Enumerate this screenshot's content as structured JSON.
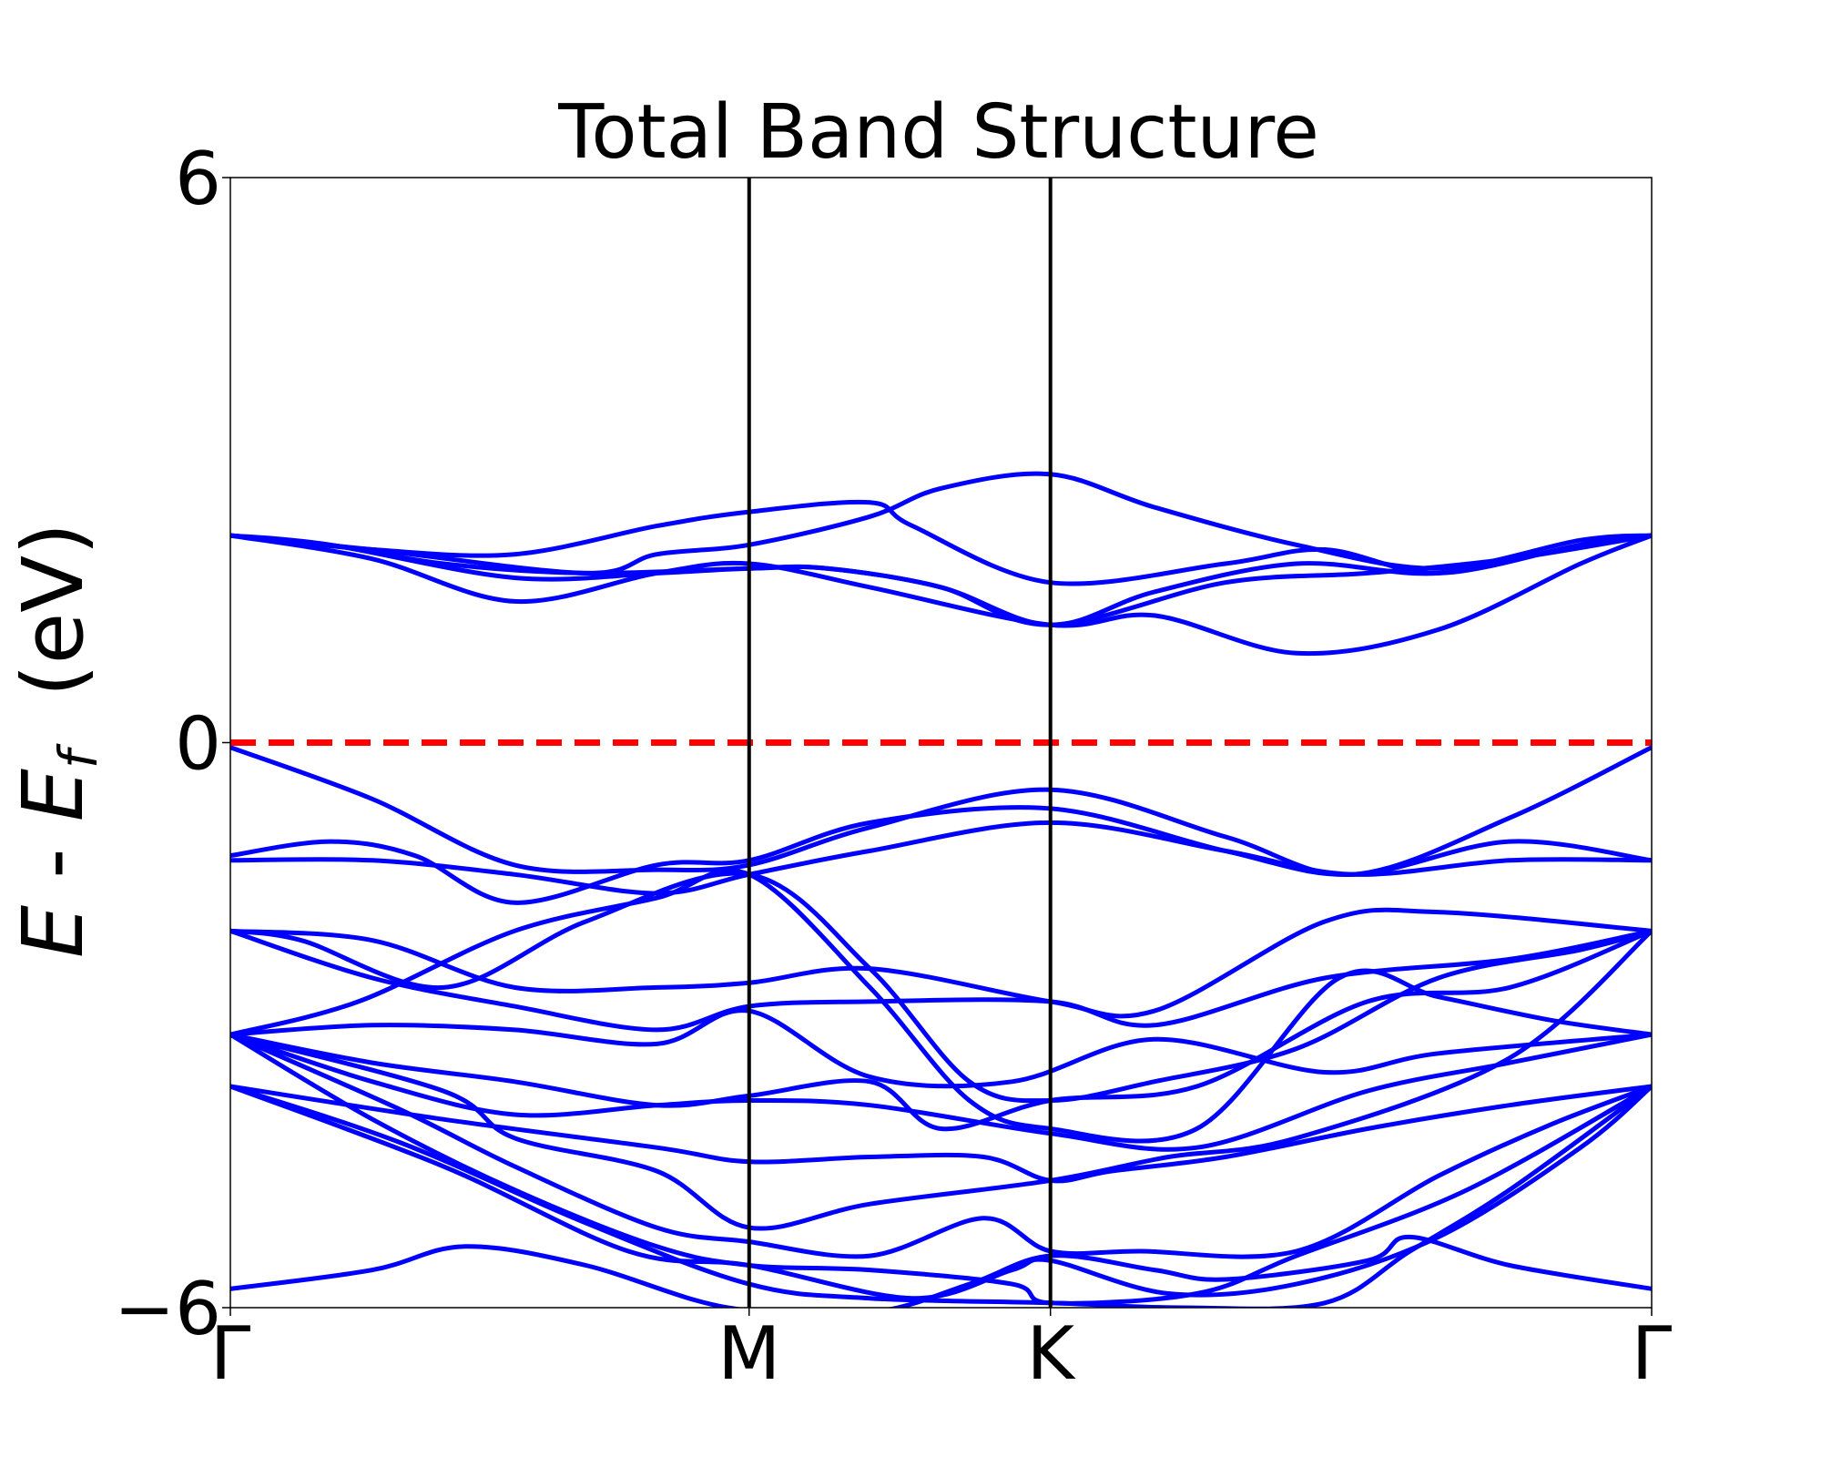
{
  "chart_data": {
    "type": "line",
    "title": "Total Band Structure",
    "ylabel": {
      "e": "E",
      "dash": " - ",
      "ef": "E",
      "sub": "f",
      "unit": "  (eV)"
    },
    "ylim": [
      -6,
      6
    ],
    "yticks": [
      "6",
      "0",
      "−6"
    ],
    "xlim": [
      0,
      1
    ],
    "kpoints": [
      {
        "label": "Γ",
        "x": 0.0
      },
      {
        "label": "M",
        "x": 0.365
      },
      {
        "label": "K",
        "x": 0.577
      },
      {
        "label": "Γ",
        "x": 1.0
      }
    ],
    "fermi_level": 0,
    "colors": {
      "bands": "#0000ff",
      "fermi": "#ff0000",
      "kpoint_lines": "#000000"
    },
    "series": [
      {
        "values": [
          [
            0,
            2.2
          ],
          [
            0.1,
            1.95
          ],
          [
            0.2,
            1.5
          ],
          [
            0.3,
            1.8
          ],
          [
            0.365,
            1.9
          ],
          [
            0.45,
            1.65
          ],
          [
            0.577,
            1.25
          ],
          [
            0.65,
            1.35
          ],
          [
            0.75,
            0.95
          ],
          [
            0.85,
            1.2
          ],
          [
            0.95,
            1.9
          ],
          [
            1,
            2.2
          ]
        ]
      },
      {
        "values": [
          [
            0,
            2.2
          ],
          [
            0.07,
            2.1
          ],
          [
            0.2,
            1.75
          ],
          [
            0.3,
            1.8
          ],
          [
            0.365,
            1.85
          ],
          [
            0.42,
            1.85
          ],
          [
            0.5,
            1.65
          ],
          [
            0.577,
            1.25
          ],
          [
            0.7,
            1.7
          ],
          [
            0.8,
            1.8
          ],
          [
            0.9,
            1.95
          ],
          [
            1,
            2.2
          ]
        ]
      },
      {
        "values": [
          [
            0,
            2.2
          ],
          [
            0.07,
            2.1
          ],
          [
            0.15,
            1.9
          ],
          [
            0.25,
            1.8
          ],
          [
            0.365,
            1.85
          ],
          [
            0.42,
            1.85
          ],
          [
            0.5,
            1.65
          ],
          [
            0.577,
            1.25
          ],
          [
            0.65,
            1.6
          ],
          [
            0.75,
            1.9
          ],
          [
            0.85,
            1.8
          ],
          [
            0.95,
            2.1
          ],
          [
            1,
            2.2
          ]
        ]
      },
      {
        "values": [
          [
            0,
            2.2
          ],
          [
            0.1,
            2.05
          ],
          [
            0.25,
            1.8
          ],
          [
            0.3,
            2.0
          ],
          [
            0.365,
            2.1
          ],
          [
            0.45,
            2.4
          ],
          [
            0.5,
            2.7
          ],
          [
            0.577,
            2.85
          ],
          [
            0.65,
            2.5
          ],
          [
            0.75,
            2.1
          ],
          [
            0.85,
            1.85
          ],
          [
            0.95,
            2.15
          ],
          [
            1,
            2.2
          ]
        ]
      },
      {
        "values": [
          [
            0,
            2.2
          ],
          [
            0.1,
            2.05
          ],
          [
            0.2,
            2.0
          ],
          [
            0.3,
            2.3
          ],
          [
            0.365,
            2.45
          ],
          [
            0.45,
            2.55
          ],
          [
            0.48,
            2.3
          ],
          [
            0.577,
            1.7
          ],
          [
            0.7,
            1.9
          ],
          [
            0.77,
            2.05
          ],
          [
            0.85,
            1.8
          ],
          [
            0.95,
            2.1
          ],
          [
            1,
            2.2
          ]
        ]
      },
      {
        "values": [
          [
            0,
            -0.05
          ],
          [
            0.1,
            -0.6
          ],
          [
            0.2,
            -1.3
          ],
          [
            0.3,
            -1.35
          ],
          [
            0.365,
            -1.3
          ],
          [
            0.45,
            -0.9
          ],
          [
            0.577,
            -0.5
          ],
          [
            0.7,
            -1.0
          ],
          [
            0.79,
            -1.4
          ],
          [
            0.9,
            -0.8
          ],
          [
            1,
            -0.05
          ]
        ]
      },
      {
        "values": [
          [
            0,
            -1.2
          ],
          [
            0.07,
            -1.05
          ],
          [
            0.13,
            -1.2
          ],
          [
            0.2,
            -1.7
          ],
          [
            0.3,
            -1.3
          ],
          [
            0.365,
            -1.25
          ],
          [
            0.45,
            -0.85
          ],
          [
            0.577,
            -0.7
          ],
          [
            0.7,
            -1.15
          ],
          [
            0.79,
            -1.4
          ],
          [
            0.9,
            -1.05
          ],
          [
            1,
            -1.25
          ]
        ]
      },
      {
        "values": [
          [
            0,
            -1.25
          ],
          [
            0.1,
            -1.25
          ],
          [
            0.2,
            -1.4
          ],
          [
            0.3,
            -1.6
          ],
          [
            0.365,
            -1.4
          ],
          [
            0.45,
            -1.15
          ],
          [
            0.577,
            -0.85
          ],
          [
            0.7,
            -1.15
          ],
          [
            0.79,
            -1.4
          ],
          [
            0.9,
            -1.25
          ],
          [
            1,
            -1.25
          ]
        ]
      },
      {
        "values": [
          [
            0,
            -2.0
          ],
          [
            0.1,
            -2.1
          ],
          [
            0.2,
            -2.6
          ],
          [
            0.3,
            -2.6
          ],
          [
            0.365,
            -2.55
          ],
          [
            0.45,
            -2.4
          ],
          [
            0.577,
            -2.75
          ],
          [
            0.65,
            -2.85
          ],
          [
            0.77,
            -1.9
          ],
          [
            0.85,
            -1.8
          ],
          [
            1,
            -2.0
          ]
        ]
      },
      {
        "values": [
          [
            0,
            -2.0
          ],
          [
            0.05,
            -2.1
          ],
          [
            0.15,
            -2.6
          ],
          [
            0.25,
            -1.9
          ],
          [
            0.365,
            -1.4
          ],
          [
            0.45,
            -2.4
          ],
          [
            0.52,
            -3.6
          ],
          [
            0.577,
            -3.8
          ],
          [
            0.65,
            -3.6
          ],
          [
            0.75,
            -3.25
          ],
          [
            0.85,
            -2.5
          ],
          [
            0.95,
            -2.2
          ],
          [
            1,
            -2.0
          ]
        ]
      },
      {
        "values": [
          [
            0,
            -2.0
          ],
          [
            0.1,
            -2.5
          ],
          [
            0.2,
            -2.8
          ],
          [
            0.3,
            -3.05
          ],
          [
            0.365,
            -2.8
          ],
          [
            0.45,
            -2.75
          ],
          [
            0.577,
            -2.75
          ],
          [
            0.65,
            -3.0
          ],
          [
            0.77,
            -2.5
          ],
          [
            0.9,
            -2.3
          ],
          [
            1,
            -2.0
          ]
        ]
      },
      {
        "values": [
          [
            0,
            -3.1
          ],
          [
            0.09,
            -2.75
          ],
          [
            0.2,
            -2.0
          ],
          [
            0.3,
            -1.65
          ],
          [
            0.365,
            -1.4
          ],
          [
            0.45,
            -2.6
          ],
          [
            0.52,
            -3.8
          ],
          [
            0.577,
            -4.1
          ],
          [
            0.68,
            -4.1
          ],
          [
            0.78,
            -2.5
          ],
          [
            0.85,
            -2.7
          ],
          [
            0.93,
            -2.95
          ],
          [
            1,
            -3.1
          ]
        ]
      },
      {
        "values": [
          [
            0,
            -3.1
          ],
          [
            0.1,
            -3.0
          ],
          [
            0.2,
            -3.05
          ],
          [
            0.3,
            -3.2
          ],
          [
            0.365,
            -2.85
          ],
          [
            0.45,
            -3.55
          ],
          [
            0.55,
            -3.6
          ],
          [
            0.65,
            -3.15
          ],
          [
            0.77,
            -3.5
          ],
          [
            0.85,
            -3.3
          ],
          [
            1,
            -3.1
          ]
        ]
      },
      {
        "values": [
          [
            0,
            -3.1
          ],
          [
            0.1,
            -3.4
          ],
          [
            0.2,
            -3.6
          ],
          [
            0.3,
            -3.85
          ],
          [
            0.365,
            -3.75
          ],
          [
            0.45,
            -3.6
          ],
          [
            0.5,
            -4.1
          ],
          [
            0.577,
            -3.8
          ],
          [
            0.68,
            -3.65
          ],
          [
            0.8,
            -2.75
          ],
          [
            0.9,
            -2.6
          ],
          [
            1,
            -2.0
          ]
        ]
      },
      {
        "values": [
          [
            0,
            -3.1
          ],
          [
            0.1,
            -3.6
          ],
          [
            0.2,
            -3.95
          ],
          [
            0.3,
            -3.85
          ],
          [
            0.365,
            -3.8
          ],
          [
            0.45,
            -3.85
          ],
          [
            0.577,
            -4.15
          ],
          [
            0.68,
            -4.3
          ],
          [
            0.8,
            -3.7
          ],
          [
            0.9,
            -3.4
          ],
          [
            1,
            -3.1
          ]
        ]
      },
      {
        "values": [
          [
            0,
            -3.65
          ],
          [
            0.15,
            -4.0
          ],
          [
            0.3,
            -4.3
          ],
          [
            0.365,
            -4.45
          ],
          [
            0.45,
            -4.4
          ],
          [
            0.53,
            -4.4
          ],
          [
            0.577,
            -4.65
          ],
          [
            0.62,
            -4.55
          ],
          [
            0.7,
            -4.4
          ],
          [
            0.8,
            -4.1
          ],
          [
            0.9,
            -3.85
          ],
          [
            1,
            -3.65
          ]
        ]
      },
      {
        "values": [
          [
            0,
            -3.1
          ],
          [
            0.15,
            -3.7
          ],
          [
            0.2,
            -4.2
          ],
          [
            0.3,
            -4.55
          ],
          [
            0.365,
            -5.15
          ],
          [
            0.45,
            -4.9
          ],
          [
            0.577,
            -4.65
          ],
          [
            0.66,
            -4.4
          ],
          [
            0.75,
            -4.2
          ],
          [
            0.9,
            -3.35
          ],
          [
            1,
            -2.0
          ]
        ]
      },
      {
        "values": [
          [
            0,
            -3.1
          ],
          [
            0.12,
            -3.9
          ],
          [
            0.2,
            -4.5
          ],
          [
            0.3,
            -5.15
          ],
          [
            0.365,
            -5.3
          ],
          [
            0.45,
            -5.45
          ],
          [
            0.53,
            -5.05
          ],
          [
            0.577,
            -5.4
          ],
          [
            0.64,
            -5.4
          ],
          [
            0.75,
            -5.4
          ],
          [
            0.85,
            -4.6
          ],
          [
            0.93,
            -4.05
          ],
          [
            1,
            -3.65
          ]
        ]
      },
      {
        "values": [
          [
            0,
            -3.1
          ],
          [
            0.1,
            -4.0
          ],
          [
            0.2,
            -4.75
          ],
          [
            0.3,
            -5.35
          ],
          [
            0.365,
            -5.55
          ],
          [
            0.45,
            -5.6
          ],
          [
            0.55,
            -5.75
          ],
          [
            0.577,
            -5.95
          ],
          [
            0.68,
            -5.85
          ],
          [
            0.75,
            -5.45
          ],
          [
            0.87,
            -4.75
          ],
          [
            1,
            -3.65
          ]
        ]
      },
      {
        "values": [
          [
            0,
            -5.8
          ],
          [
            0.1,
            -5.6
          ],
          [
            0.165,
            -5.35
          ],
          [
            0.25,
            -5.55
          ],
          [
            0.35,
            -6.0
          ],
          [
            0.45,
            -6.05
          ],
          [
            0.52,
            -5.75
          ],
          [
            0.577,
            -5.45
          ],
          [
            0.65,
            -5.6
          ],
          [
            0.7,
            -5.7
          ],
          [
            0.8,
            -5.5
          ],
          [
            0.83,
            -5.25
          ],
          [
            0.9,
            -5.55
          ],
          [
            1,
            -5.8
          ]
        ]
      },
      {
        "values": [
          [
            0,
            -3.65
          ],
          [
            0.12,
            -4.25
          ],
          [
            0.25,
            -5.1
          ],
          [
            0.365,
            -5.75
          ],
          [
            0.45,
            -5.9
          ],
          [
            0.577,
            -5.95
          ],
          [
            0.67,
            -6.0
          ],
          [
            0.77,
            -5.95
          ],
          [
            0.83,
            -5.4
          ],
          [
            0.9,
            -4.75
          ],
          [
            1,
            -3.65
          ]
        ]
      },
      {
        "values": [
          [
            0,
            -3.65
          ],
          [
            0.15,
            -4.5
          ],
          [
            0.28,
            -5.4
          ],
          [
            0.365,
            -5.55
          ],
          [
            0.48,
            -5.9
          ],
          [
            0.55,
            -5.6
          ],
          [
            0.577,
            -5.5
          ],
          [
            0.66,
            -5.85
          ],
          [
            0.75,
            -5.75
          ],
          [
            0.85,
            -5.25
          ],
          [
            0.95,
            -4.3
          ],
          [
            1,
            -3.65
          ]
        ]
      }
    ]
  }
}
